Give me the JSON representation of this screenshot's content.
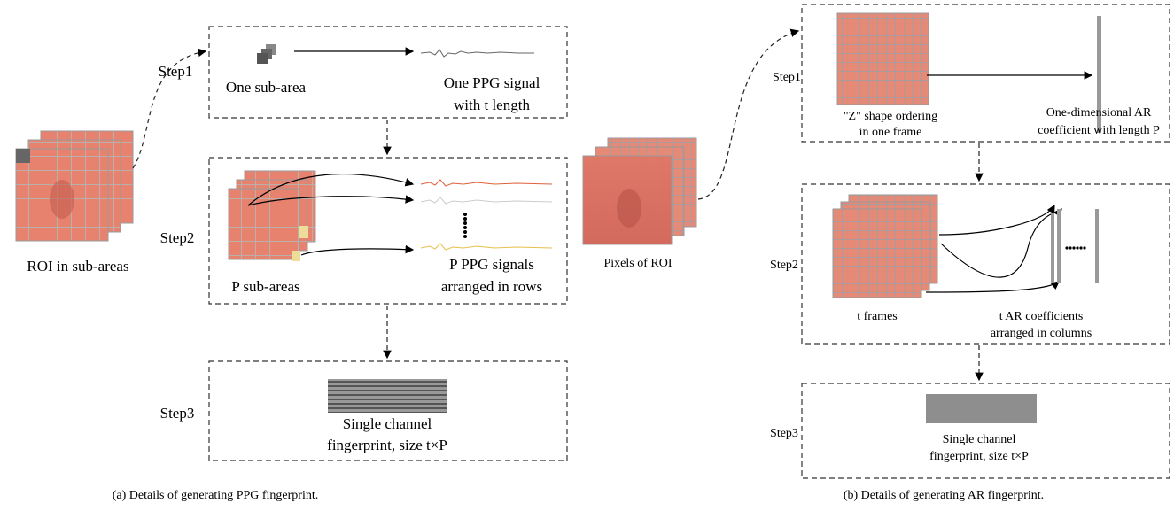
{
  "panel_a": {
    "input_label": "ROI in sub-areas",
    "steps": [
      {
        "label": "Step1",
        "left": [
          "One sub-area"
        ],
        "right": [
          "One PPG signal",
          "with t length"
        ]
      },
      {
        "label": "Step2",
        "left": [
          "P sub-areas"
        ],
        "right": [
          "P PPG signals",
          "arranged in rows"
        ]
      },
      {
        "label": "Step3",
        "center": [
          "Single channel",
          "fingerprint, size t×P"
        ]
      }
    ],
    "caption": "(a) Details of generating PPG fingerprint."
  },
  "panel_b": {
    "input_label": "Pixels of ROI",
    "steps": [
      {
        "label": "Step1",
        "left": [
          "\"Z\" shape ordering",
          "in one frame"
        ],
        "right": [
          "One-dimensional AR",
          "coefficient with length P"
        ]
      },
      {
        "label": "Step2",
        "left": [
          "t frames"
        ],
        "right": [
          "t AR coefficients",
          "arranged in columns"
        ]
      },
      {
        "label": "Step3",
        "center": [
          "Single channel",
          "fingerprint, size t×P"
        ]
      }
    ],
    "caption": "(b) Details of generating AR fingerprint."
  }
}
